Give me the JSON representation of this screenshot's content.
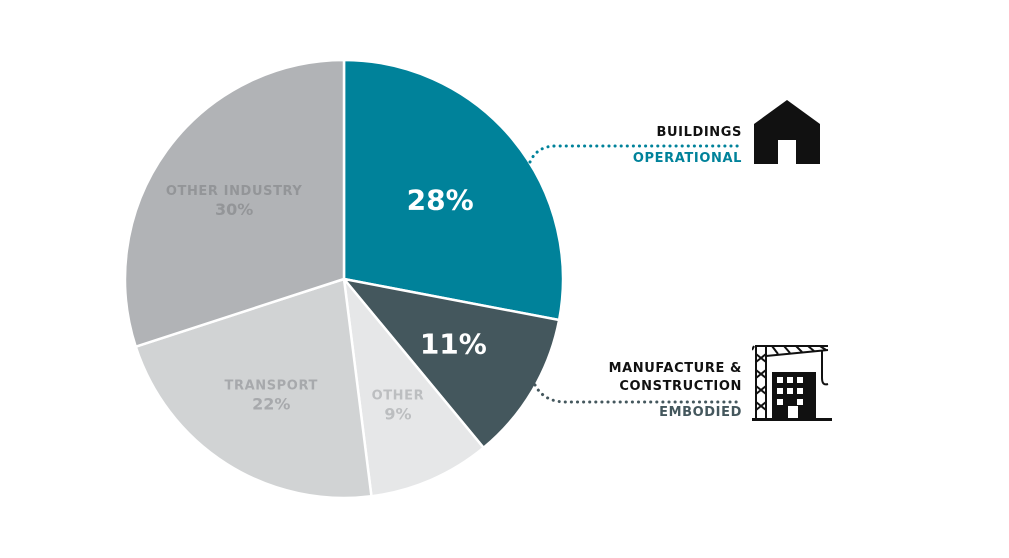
{
  "chart_data": {
    "type": "pie",
    "title": "",
    "slices": [
      {
        "label": "",
        "value": 28,
        "display": "28%",
        "color": "#00829a",
        "text_color": "#ffffff"
      },
      {
        "label": "",
        "value": 11,
        "display": "11%",
        "color": "#44575d",
        "text_color": "#ffffff"
      },
      {
        "label": "OTHER",
        "value": 9,
        "display": "9%",
        "color": "#e6e7e8",
        "text_color": "#bcbec0"
      },
      {
        "label": "TRANSPORT",
        "value": 22,
        "display": "22%",
        "color": "#d1d3d4",
        "text_color": "#a7a9ac"
      },
      {
        "label": "OTHER INDUSTRY",
        "value": 30,
        "display": "30%",
        "color": "#b1b3b6",
        "text_color": "#939598"
      }
    ],
    "start_angle_deg": 0,
    "direction": "clockwise"
  },
  "callouts": {
    "buildings": {
      "title": "BUILDINGS",
      "subtitle": "OPERATIONAL",
      "subtitle_color": "#00829a",
      "icon": "house-icon"
    },
    "manufacture": {
      "title_line1": "MANUFACTURE &",
      "title_line2": "CONSTRUCTION",
      "subtitle": "EMBODIED",
      "subtitle_color": "#44575d",
      "icon": "crane-building-icon"
    }
  },
  "colors": {
    "dotted_line_teal": "#00829a",
    "dotted_line_slate": "#44575d",
    "icon": "#111111"
  }
}
